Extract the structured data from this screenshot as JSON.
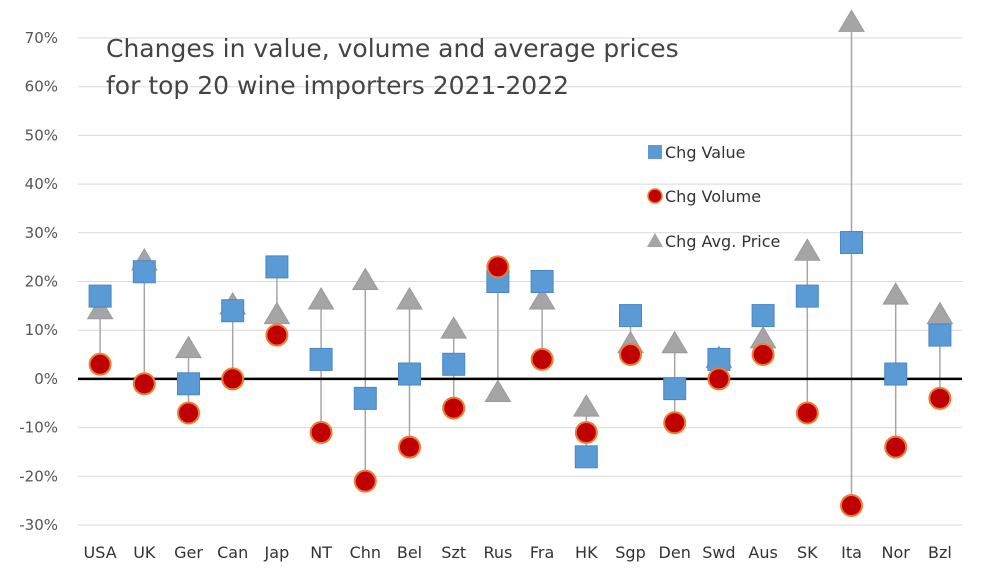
{
  "chart_data": {
    "type": "scatter",
    "title_lines": [
      "Changes in value, volume and average prices",
      "for top 20 wine importers 2021-2022"
    ],
    "categories": [
      "USA",
      "UK",
      "Ger",
      "Can",
      "Jap",
      "NT",
      "Chn",
      "Bel",
      "Szt",
      "Rus",
      "Fra",
      "HK",
      "Sgp",
      "Den",
      "Swd",
      "Aus",
      "SK",
      "Ita",
      "Nor",
      "Bzl"
    ],
    "series": [
      {
        "name": "Chg Value",
        "marker": "square",
        "color": "#5B9BD5",
        "values": [
          17,
          22,
          -1,
          14,
          23,
          4,
          -4,
          1,
          3,
          20,
          20,
          -16,
          13,
          -2,
          4,
          13,
          17,
          28,
          1,
          9
        ]
      },
      {
        "name": "Chg Volume",
        "marker": "circle",
        "color": "#C00000",
        "values": [
          3,
          -1,
          -7,
          0,
          9,
          -11,
          -21,
          -14,
          -6,
          23,
          4,
          -11,
          5,
          -9,
          0,
          5,
          -7,
          -26,
          -14,
          -4
        ]
      },
      {
        "name": "Chg Avg. Price",
        "marker": "triangle",
        "color": "#A5A5A5",
        "values": [
          14,
          24,
          6,
          15,
          13,
          16,
          20,
          16,
          10,
          -3,
          16,
          -6,
          7,
          7,
          4,
          8,
          26,
          73,
          17,
          13
        ]
      }
    ],
    "yticks": [
      "-30%",
      "-20%",
      "-10%",
      "0%",
      "10%",
      "20%",
      "30%",
      "40%",
      "50%",
      "60%",
      "70%"
    ],
    "ytick_values": [
      -30,
      -20,
      -10,
      0,
      10,
      20,
      30,
      40,
      50,
      60,
      70
    ],
    "ylim": [
      -30,
      70
    ],
    "xlabel": "",
    "ylabel": "",
    "grid": true,
    "legend_position": "right-center"
  }
}
